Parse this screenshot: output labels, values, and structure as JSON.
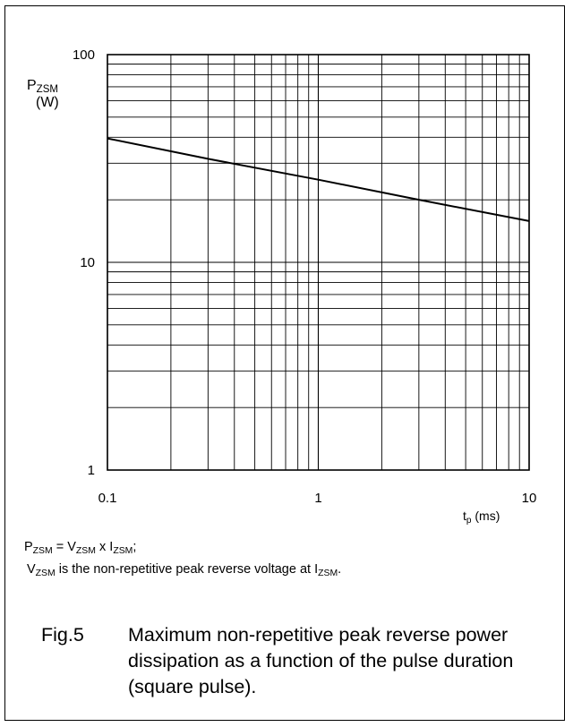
{
  "chart_data": {
    "type": "line",
    "x_scale": "log",
    "y_scale": "log",
    "xlim": [
      0.1,
      10
    ],
    "ylim": [
      1,
      100
    ],
    "x_ticks": [
      "0.1",
      "1",
      "10"
    ],
    "y_ticks": [
      "100",
      "10",
      "1"
    ],
    "grid": true,
    "ylabel": {
      "symbol": "P",
      "sub": "ZSM",
      "unit": "(W)"
    },
    "xlabel": {
      "symbol": "t",
      "sub": "p",
      "unit": " (ms)"
    },
    "series": [
      {
        "x": [
          0.1,
          0.3,
          1,
          3,
          10
        ],
        "y": [
          39.5,
          31.5,
          25,
          20,
          15.8
        ]
      }
    ]
  },
  "notes": {
    "line1": {
      "a": "P",
      "a_sub": "ZSM",
      "b": " = V",
      "b_sub": "ZSM",
      "c": " x I",
      "c_sub": "ZSM",
      "d": ";"
    },
    "line2": {
      "a": "V",
      "a_sub": "ZSM",
      "b": " is the non-repetitive peak reverse voltage at I",
      "b_sub": "ZSM",
      "c": "."
    }
  },
  "caption": {
    "fig": "Fig.5",
    "text": "Maximum non-repetitive peak reverse power dissipation as a function of the pulse duration (square pulse)."
  }
}
